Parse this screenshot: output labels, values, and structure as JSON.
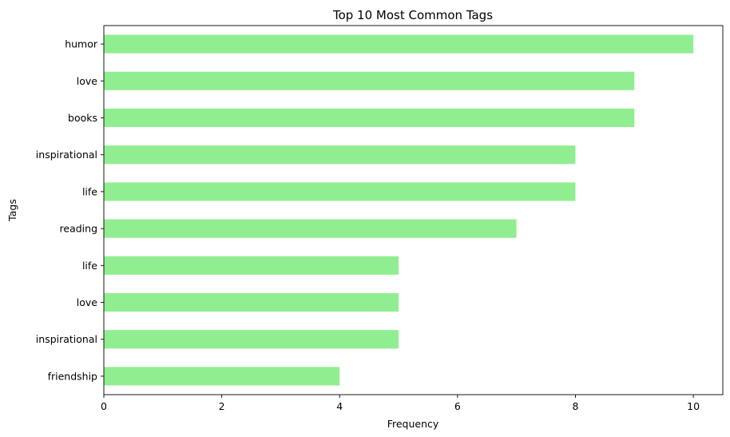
{
  "chart_data": {
    "type": "bar",
    "orientation": "horizontal",
    "title": "Top 10 Most Common Tags",
    "xlabel": "Frequency",
    "ylabel": "Tags",
    "categories": [
      "humor",
      " love",
      "books",
      " inspirational",
      " life",
      " reading",
      "life",
      "love",
      "inspirational",
      "friendship"
    ],
    "values": [
      10,
      9,
      9,
      8,
      8,
      7,
      5,
      5,
      5,
      4
    ],
    "xlim": [
      0,
      10.5
    ],
    "xticks": [
      0,
      2,
      4,
      6,
      8,
      10
    ],
    "bar_color": "#90ee90",
    "grid": false,
    "legend": "none"
  }
}
